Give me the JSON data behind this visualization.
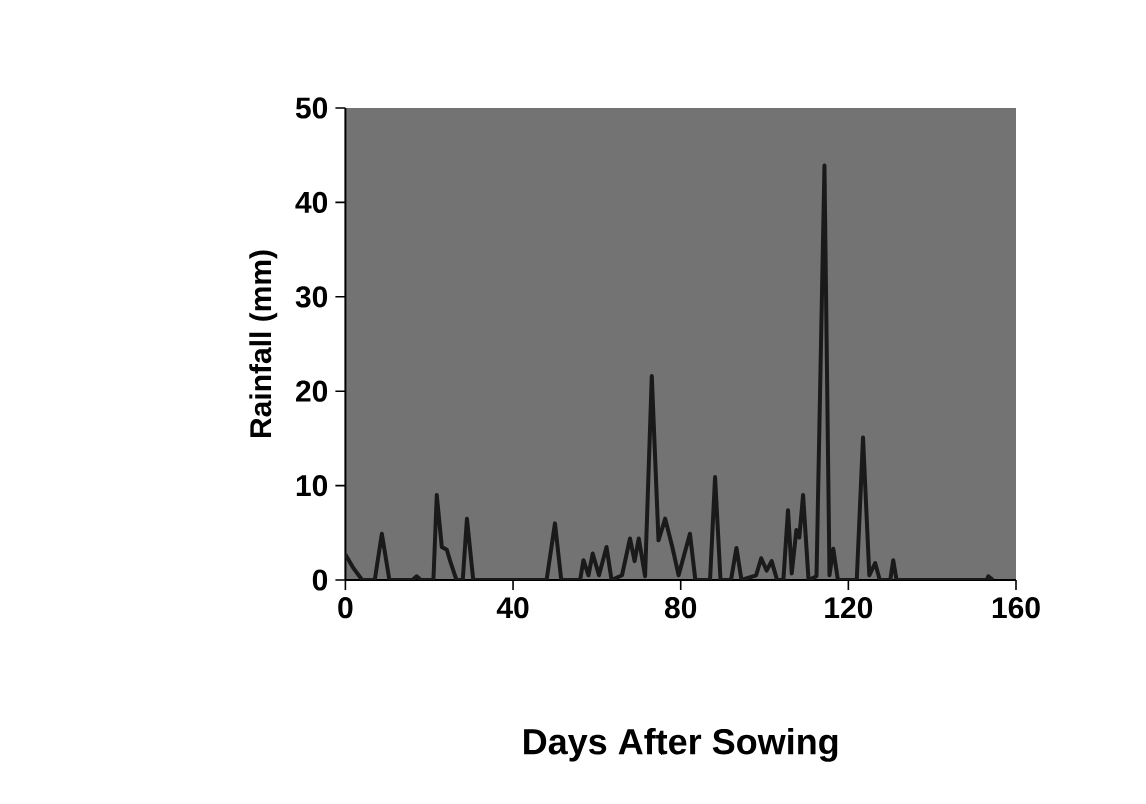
{
  "chart_data": {
    "type": "line",
    "xlabel": "Days After Sowing",
    "ylabel": "Rainfall (mm)",
    "x": [
      0,
      2,
      4,
      7,
      8.7,
      10.5,
      16,
      17,
      18,
      21,
      21.8,
      23,
      24.2,
      25,
      26.5,
      28,
      29,
      30.5,
      48,
      50,
      51.5,
      56,
      56.8,
      58,
      59,
      60.5,
      62.3,
      63.5,
      66,
      67.9,
      69,
      70,
      71.5,
      73.1,
      74.7,
      76.3,
      78,
      79.5,
      82.2,
      83.5,
      87,
      88.2,
      89.5,
      92,
      93.3,
      94.5,
      98,
      99.2,
      100.5,
      101.7,
      103,
      104.5,
      105.6,
      106.5,
      107.6,
      108.3,
      109.2,
      110.5,
      112.4,
      114.3,
      115.5,
      116.4,
      117.5,
      122,
      123.5,
      125,
      126.4,
      127.5,
      130,
      130.7,
      131.5,
      153,
      153.4,
      154.5
    ],
    "values": [
      2.7,
      1.2,
      0,
      0,
      4.9,
      0,
      0,
      0.4,
      0,
      0,
      9.0,
      3.5,
      3.2,
      2,
      0,
      0,
      6.5,
      0,
      0,
      6.0,
      0,
      0,
      2.1,
      0.5,
      2.8,
      0.5,
      3.5,
      0,
      0.5,
      4.4,
      2,
      4.4,
      0.4,
      21.6,
      4.2,
      6.5,
      3.5,
      0.5,
      4.9,
      0,
      0,
      10.9,
      0,
      0,
      3.4,
      0,
      0.5,
      2.3,
      1,
      2,
      0,
      0,
      7.4,
      0.7,
      5.3,
      4.5,
      9,
      0,
      0.4,
      43.9,
      0.5,
      3.3,
      0,
      0,
      15.1,
      0.5,
      1.8,
      0,
      0,
      2.1,
      0,
      0,
      0.4,
      0
    ],
    "color": "#1a1a1a",
    "marker": "none",
    "line_style": "solid",
    "xlim": [
      0,
      160
    ],
    "ylim": [
      0,
      50
    ],
    "xticks": [
      0,
      40,
      80,
      120,
      160
    ],
    "yticks": [
      0,
      10,
      20,
      30,
      40,
      50
    ]
  }
}
